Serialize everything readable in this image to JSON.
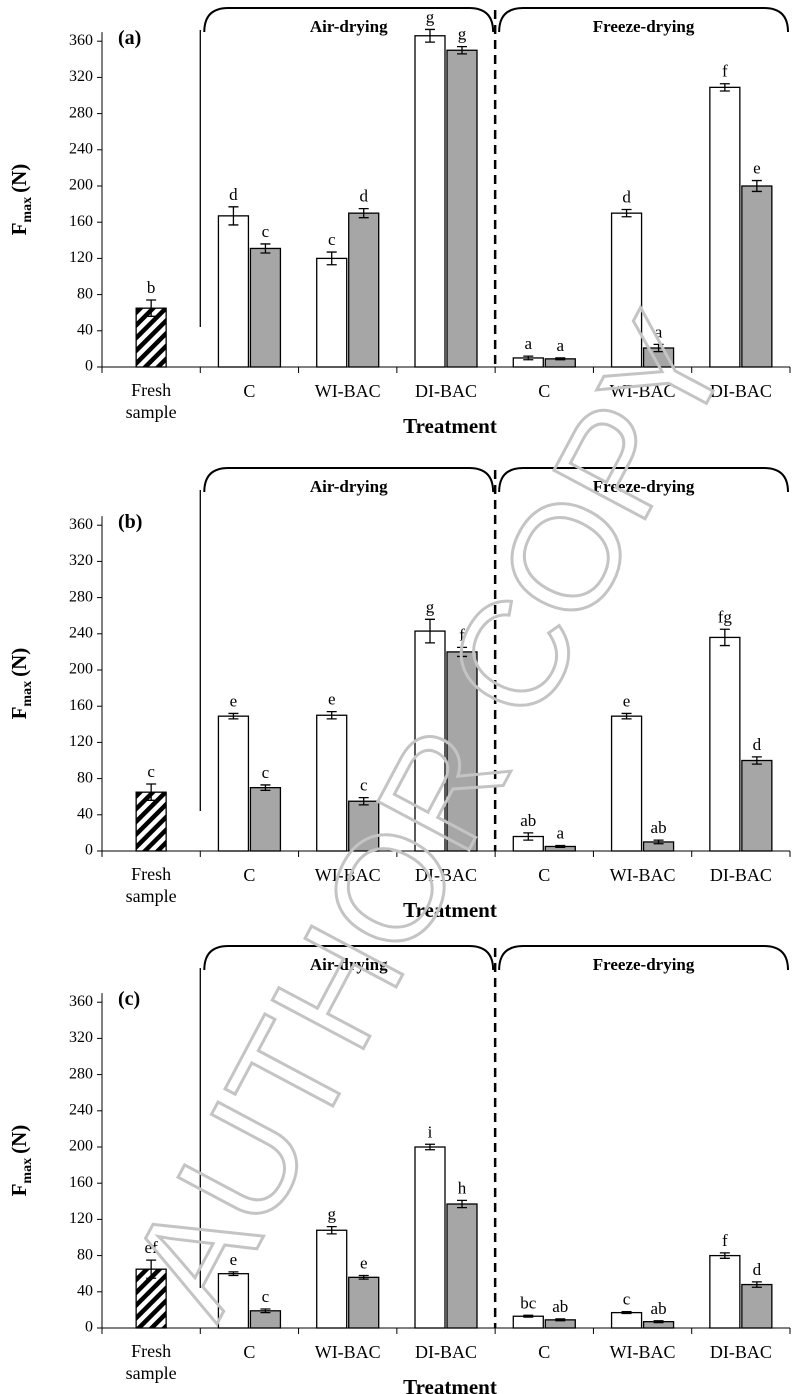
{
  "watermark": "AUTHOR COPY",
  "chart_data": [
    {
      "type": "bar",
      "panel_label": "(a)",
      "categories": [
        "Fresh sample",
        "C",
        "WI-BAC",
        "DI-BAC",
        "C",
        "WI-BAC",
        "DI-BAC"
      ],
      "group_labels": [
        "Air-drying",
        "Freeze-drying"
      ],
      "xlabel": "Treatment",
      "ylabel": {
        "symbol": "F",
        "subscript": "max",
        "unit": "(N)"
      },
      "ylim": [
        0,
        370
      ],
      "yticks": [
        0,
        40,
        80,
        120,
        160,
        200,
        240,
        280,
        320,
        360
      ],
      "series": [
        {
          "color": "#ffffff",
          "hatch": true,
          "values": [
            65,
            null,
            null,
            null,
            null,
            null,
            null
          ],
          "errors": [
            9,
            null,
            null,
            null,
            null,
            null,
            null
          ],
          "letters": [
            "b",
            null,
            null,
            null,
            null,
            null,
            null
          ]
        },
        {
          "color": "#ffffff",
          "values": [
            null,
            167,
            120,
            366,
            10,
            170,
            309
          ],
          "errors": [
            null,
            10,
            7,
            7,
            2,
            4,
            4
          ],
          "letters": [
            null,
            "d",
            "c",
            "g",
            "a",
            "d",
            "f"
          ]
        },
        {
          "color": "#a6a6a6",
          "values": [
            null,
            131,
            170,
            350,
            9,
            21,
            200
          ],
          "errors": [
            null,
            5,
            5,
            4,
            1,
            4,
            6
          ],
          "letters": [
            null,
            "c",
            "d",
            "g",
            "a",
            "a",
            "e"
          ]
        }
      ]
    },
    {
      "type": "bar",
      "panel_label": "(b)",
      "categories": [
        "Fresh sample",
        "C",
        "WI-BAC",
        "DI-BAC",
        "C",
        "WI-BAC",
        "DI-BAC"
      ],
      "group_labels": [
        "Air-drying",
        "Freeze-drying"
      ],
      "xlabel": "Treatment",
      "ylabel": {
        "symbol": "F",
        "subscript": "max",
        "unit": "(N)"
      },
      "ylim": [
        0,
        370
      ],
      "yticks": [
        0,
        40,
        80,
        120,
        160,
        200,
        240,
        280,
        320,
        360
      ],
      "series": [
        {
          "color": "#ffffff",
          "hatch": true,
          "values": [
            65,
            null,
            null,
            null,
            null,
            null,
            null
          ],
          "errors": [
            9,
            null,
            null,
            null,
            null,
            null,
            null
          ],
          "letters": [
            "c",
            null,
            null,
            null,
            null,
            null,
            null
          ]
        },
        {
          "color": "#ffffff",
          "values": [
            null,
            149,
            150,
            243,
            16,
            149,
            236
          ],
          "errors": [
            null,
            3,
            4,
            13,
            4,
            3,
            9
          ],
          "letters": [
            null,
            "e",
            "e",
            "g",
            "ab",
            "e",
            "fg"
          ]
        },
        {
          "color": "#a6a6a6",
          "values": [
            null,
            70,
            55,
            220,
            5,
            10,
            100
          ],
          "errors": [
            null,
            3,
            4,
            5,
            1,
            2,
            4
          ],
          "letters": [
            null,
            "c",
            "c",
            "f",
            "a",
            "ab",
            "d"
          ]
        }
      ]
    },
    {
      "type": "bar",
      "panel_label": "(c)",
      "categories": [
        "Fresh sample",
        "C",
        "WI-BAC",
        "DI-BAC",
        "C",
        "WI-BAC",
        "DI-BAC"
      ],
      "group_labels": [
        "Air-drying",
        "Freeze-drying"
      ],
      "xlabel": "Treatment",
      "ylabel": {
        "symbol": "F",
        "subscript": "max",
        "unit": "(N)"
      },
      "ylim": [
        0,
        370
      ],
      "yticks": [
        0,
        40,
        80,
        120,
        160,
        200,
        240,
        280,
        320,
        360
      ],
      "series": [
        {
          "color": "#ffffff",
          "hatch": true,
          "values": [
            65,
            null,
            null,
            null,
            null,
            null,
            null
          ],
          "errors": [
            10,
            null,
            null,
            null,
            null,
            null,
            null
          ],
          "letters": [
            "ef",
            null,
            null,
            null,
            null,
            null,
            null
          ]
        },
        {
          "color": "#ffffff",
          "values": [
            null,
            60,
            108,
            200,
            13,
            17,
            80
          ],
          "errors": [
            null,
            2,
            4,
            3,
            1,
            1,
            3
          ],
          "letters": [
            null,
            "e",
            "g",
            "i",
            "bc",
            "c",
            "f"
          ]
        },
        {
          "color": "#a6a6a6",
          "values": [
            null,
            19,
            56,
            137,
            9,
            7,
            48
          ],
          "errors": [
            null,
            2,
            2,
            4,
            1,
            1,
            3
          ],
          "letters": [
            null,
            "c",
            "e",
            "h",
            "ab",
            "ab",
            "d"
          ]
        }
      ]
    }
  ]
}
